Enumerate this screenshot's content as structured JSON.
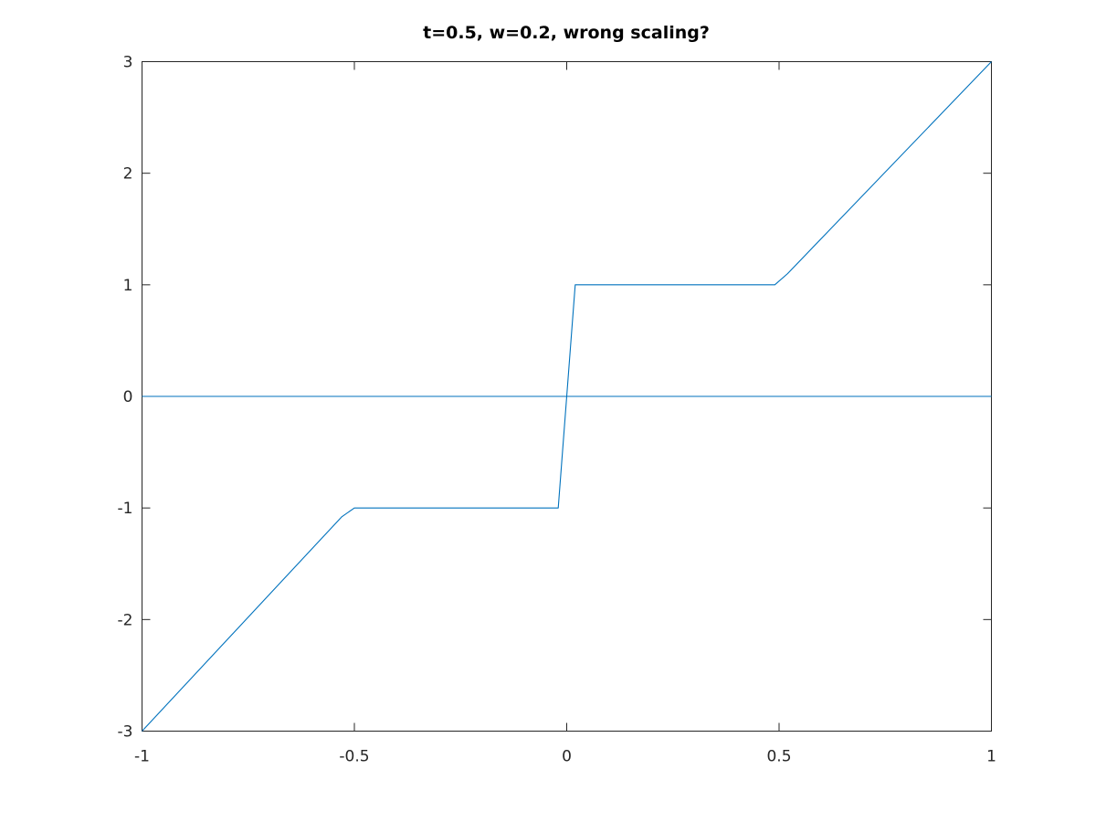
{
  "chart_data": {
    "type": "line",
    "title": "t=0.5, w=0.2, wrong scaling?",
    "xlabel": "",
    "ylabel": "",
    "xlim": [
      -1,
      1
    ],
    "ylim": [
      -3,
      3
    ],
    "xticks": [
      -1,
      -0.5,
      0,
      0.5,
      1
    ],
    "xtick_labels": [
      "-1",
      "-0.5",
      "0",
      "0.5",
      "1"
    ],
    "yticks": [
      -3,
      -2,
      -1,
      0,
      1,
      2,
      3
    ],
    "ytick_labels": [
      "-3",
      "-2",
      "-1",
      "0",
      "1",
      "2",
      "3"
    ],
    "grid": false,
    "legend": "none",
    "line_color": "#0072bd",
    "series": [
      {
        "x": [
          -1,
          -0.53,
          -0.5,
          -0.02,
          0.02,
          0.49,
          0.52,
          1
        ],
        "y": [
          -3,
          -1.08,
          -1,
          -1,
          1,
          1,
          1.1,
          3
        ]
      },
      {
        "x": [
          -1,
          1
        ],
        "y": [
          0,
          0
        ]
      }
    ]
  }
}
